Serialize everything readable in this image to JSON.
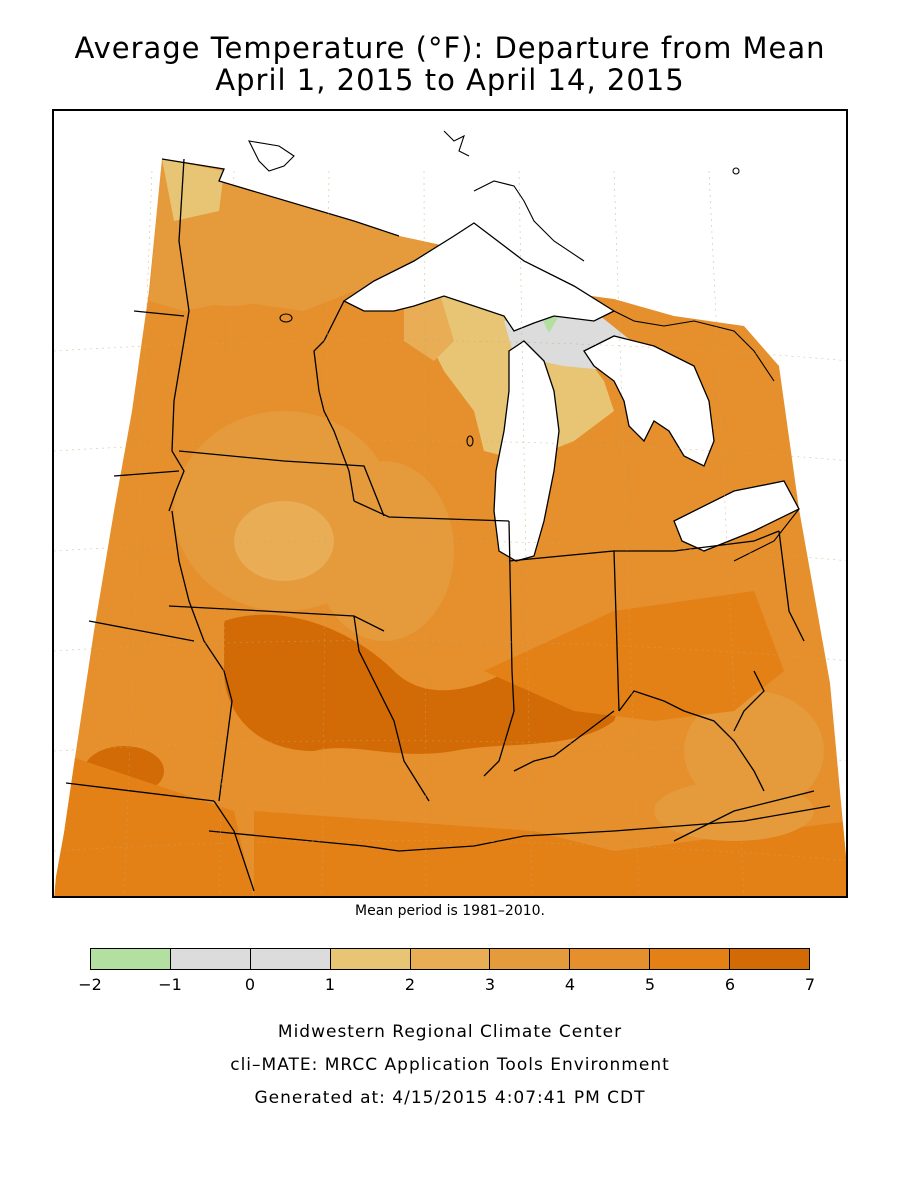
{
  "title": "Average Temperature (°F): Departure from Mean",
  "subtitle": "April 1, 2015 to April 14, 2015",
  "note": "Mean period is 1981–2010.",
  "legend": {
    "ticks": [
      "−2",
      "−1",
      "0",
      "1",
      "2",
      "3",
      "4",
      "5",
      "6",
      "7"
    ],
    "colors": [
      "#b3e0a0",
      "#dcdcdc",
      "#dcdcdc",
      "#e8c574",
      "#e8ad55",
      "#e59a3c",
      "#e5902d",
      "#e38117",
      "#d26b05"
    ]
  },
  "credits": {
    "line1": "Midwestern Regional Climate Center",
    "line2": "cli–MATE: MRCC Application Tools Environment",
    "line3": "Generated at: 4/15/2015 4:07:41 PM CDT"
  }
}
